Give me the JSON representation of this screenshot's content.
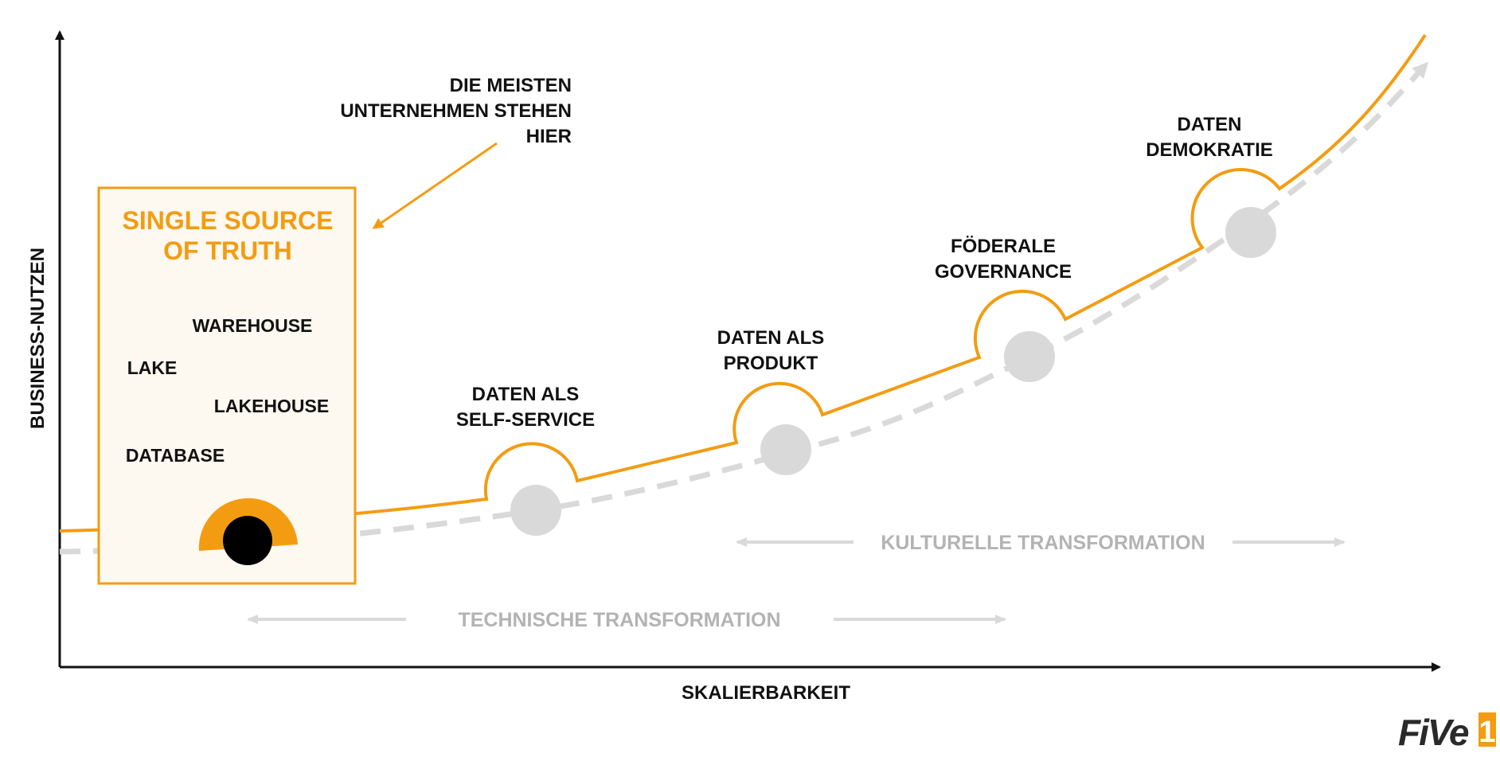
{
  "axes": {
    "x_label": "SKALIERBARKEIT",
    "y_label": "BUSINESS-NUTZEN"
  },
  "callout": {
    "line1": "DIE MEISTEN",
    "line2": "UNTERNEHMEN STEHEN",
    "line3": "HIER"
  },
  "ssot": {
    "title_line1": "SINGLE SOURCE",
    "title_line2": "OF TRUTH",
    "items": [
      "WAREHOUSE",
      "LAKE",
      "LAKEHOUSE",
      "DATABASE"
    ]
  },
  "stages": [
    {
      "line1": "DATEN ALS",
      "line2": "SELF-SERVICE"
    },
    {
      "line1": "DATEN ALS",
      "line2": "PRODUKT"
    },
    {
      "line1": "FÖDERALE",
      "line2": "GOVERNANCE"
    },
    {
      "line1": "DATEN",
      "line2": "DEMOKRATIE"
    }
  ],
  "transformations": {
    "technical": "TECHNISCHE TRANSFORMATION",
    "cultural": "KULTURELLE TRANSFORMATION"
  },
  "logo": {
    "text": "FiVe",
    "mark": "1",
    "icon": "five1-logo-icon"
  },
  "colors": {
    "accent": "#F39C12",
    "gray": "#D9D9D9",
    "text_gray": "#B3B3B3",
    "dark": "#111111"
  }
}
